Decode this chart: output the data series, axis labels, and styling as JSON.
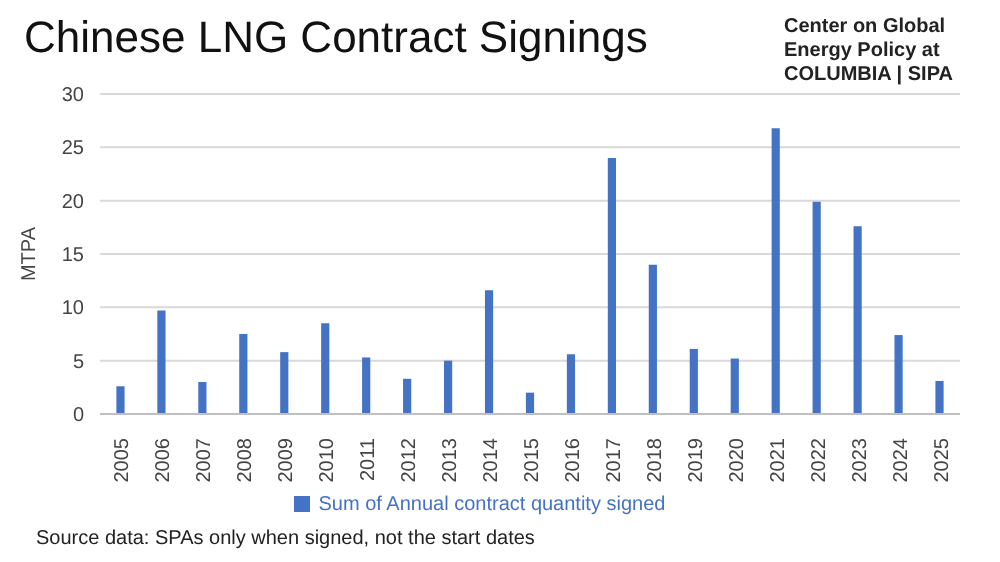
{
  "chart_data": {
    "type": "bar",
    "title": "Chinese LNG Contract Signings",
    "ylabel": "MTPA",
    "categories": [
      "2005",
      "2006",
      "2007",
      "2008",
      "2009",
      "2010",
      "2011",
      "2012",
      "2013",
      "2014",
      "2015",
      "2016",
      "2017",
      "2018",
      "2019",
      "2020",
      "2021",
      "2022",
      "2023",
      "2024",
      "2025"
    ],
    "series": [
      {
        "name": "Sum of Annual contract quantity signed",
        "color": "#4472c4",
        "values": [
          2.6,
          9.7,
          3.0,
          7.5,
          5.8,
          8.5,
          5.3,
          3.3,
          5.0,
          11.6,
          2.0,
          5.6,
          24.0,
          14.0,
          6.1,
          5.2,
          26.8,
          19.9,
          17.6,
          7.4,
          3.1
        ]
      }
    ],
    "ylim": [
      0,
      30
    ],
    "yticks": [
      0,
      5,
      10,
      15,
      20,
      25,
      30
    ],
    "grid": "y",
    "legend": "bottom",
    "annotations": [
      "Center on Global Energy Policy at COLUMBIA | SIPA",
      "Source data: SPAs only when signed, not the start dates"
    ]
  }
}
